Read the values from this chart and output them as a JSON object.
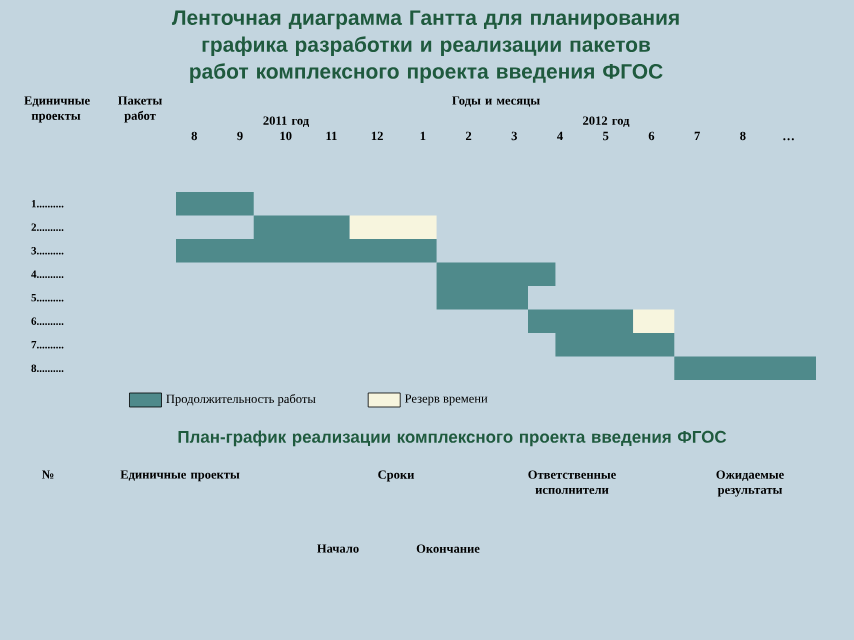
{
  "chart_data": {
    "type": "bar",
    "orientation": "horizontal",
    "title": "Ленточная диаграмма Гантта для планирования графика разработки и реализации пакетов работ комплексного проекта введения ФГОС",
    "categories": [
      "1..........",
      "2..........",
      "3..........",
      "4..........",
      "5..........",
      "6..........",
      "7..........",
      "8.........."
    ],
    "series": [
      {
        "name": "Продолжительность работы",
        "color": "#4f8a8b",
        "base": [
          7.6,
          9.3,
          7.6,
          13.3,
          13.3,
          15.3,
          15.9,
          18.5
        ],
        "values": [
          1.7,
          2.1,
          5.7,
          2.6,
          2.0,
          2.3,
          2.6,
          3.1
        ]
      },
      {
        "name": "Резерв времени",
        "color": "#f7f5de",
        "base": [
          null,
          11.4,
          null,
          null,
          null,
          17.6,
          null,
          null
        ],
        "values": [
          null,
          1.9,
          null,
          null,
          null,
          0.9,
          null,
          null
        ]
      }
    ],
    "xlim": [
      7.6,
      21.6
    ],
    "xticks": [
      8,
      9,
      10,
      11,
      12
    ],
    "x2lim": [
      -4.4,
      9.6
    ],
    "x2ticks": [
      1,
      2,
      3,
      4,
      5,
      6,
      7,
      8,
      {
        "value": 9,
        "label": "…"
      }
    ],
    "legend": "bottom",
    "annotations": [
      "Единичные проекты",
      "Пакеты работ",
      "Годы и месяцы",
      "2011 год",
      "2012 год",
      "План-график реализации комплексного проекта введения ФГОС",
      "№",
      "Единичные проекты",
      "Сроки",
      "Ответственные исполнители",
      "Ожидаемые результаты",
      "Начало",
      "Окончание"
    ]
  }
}
